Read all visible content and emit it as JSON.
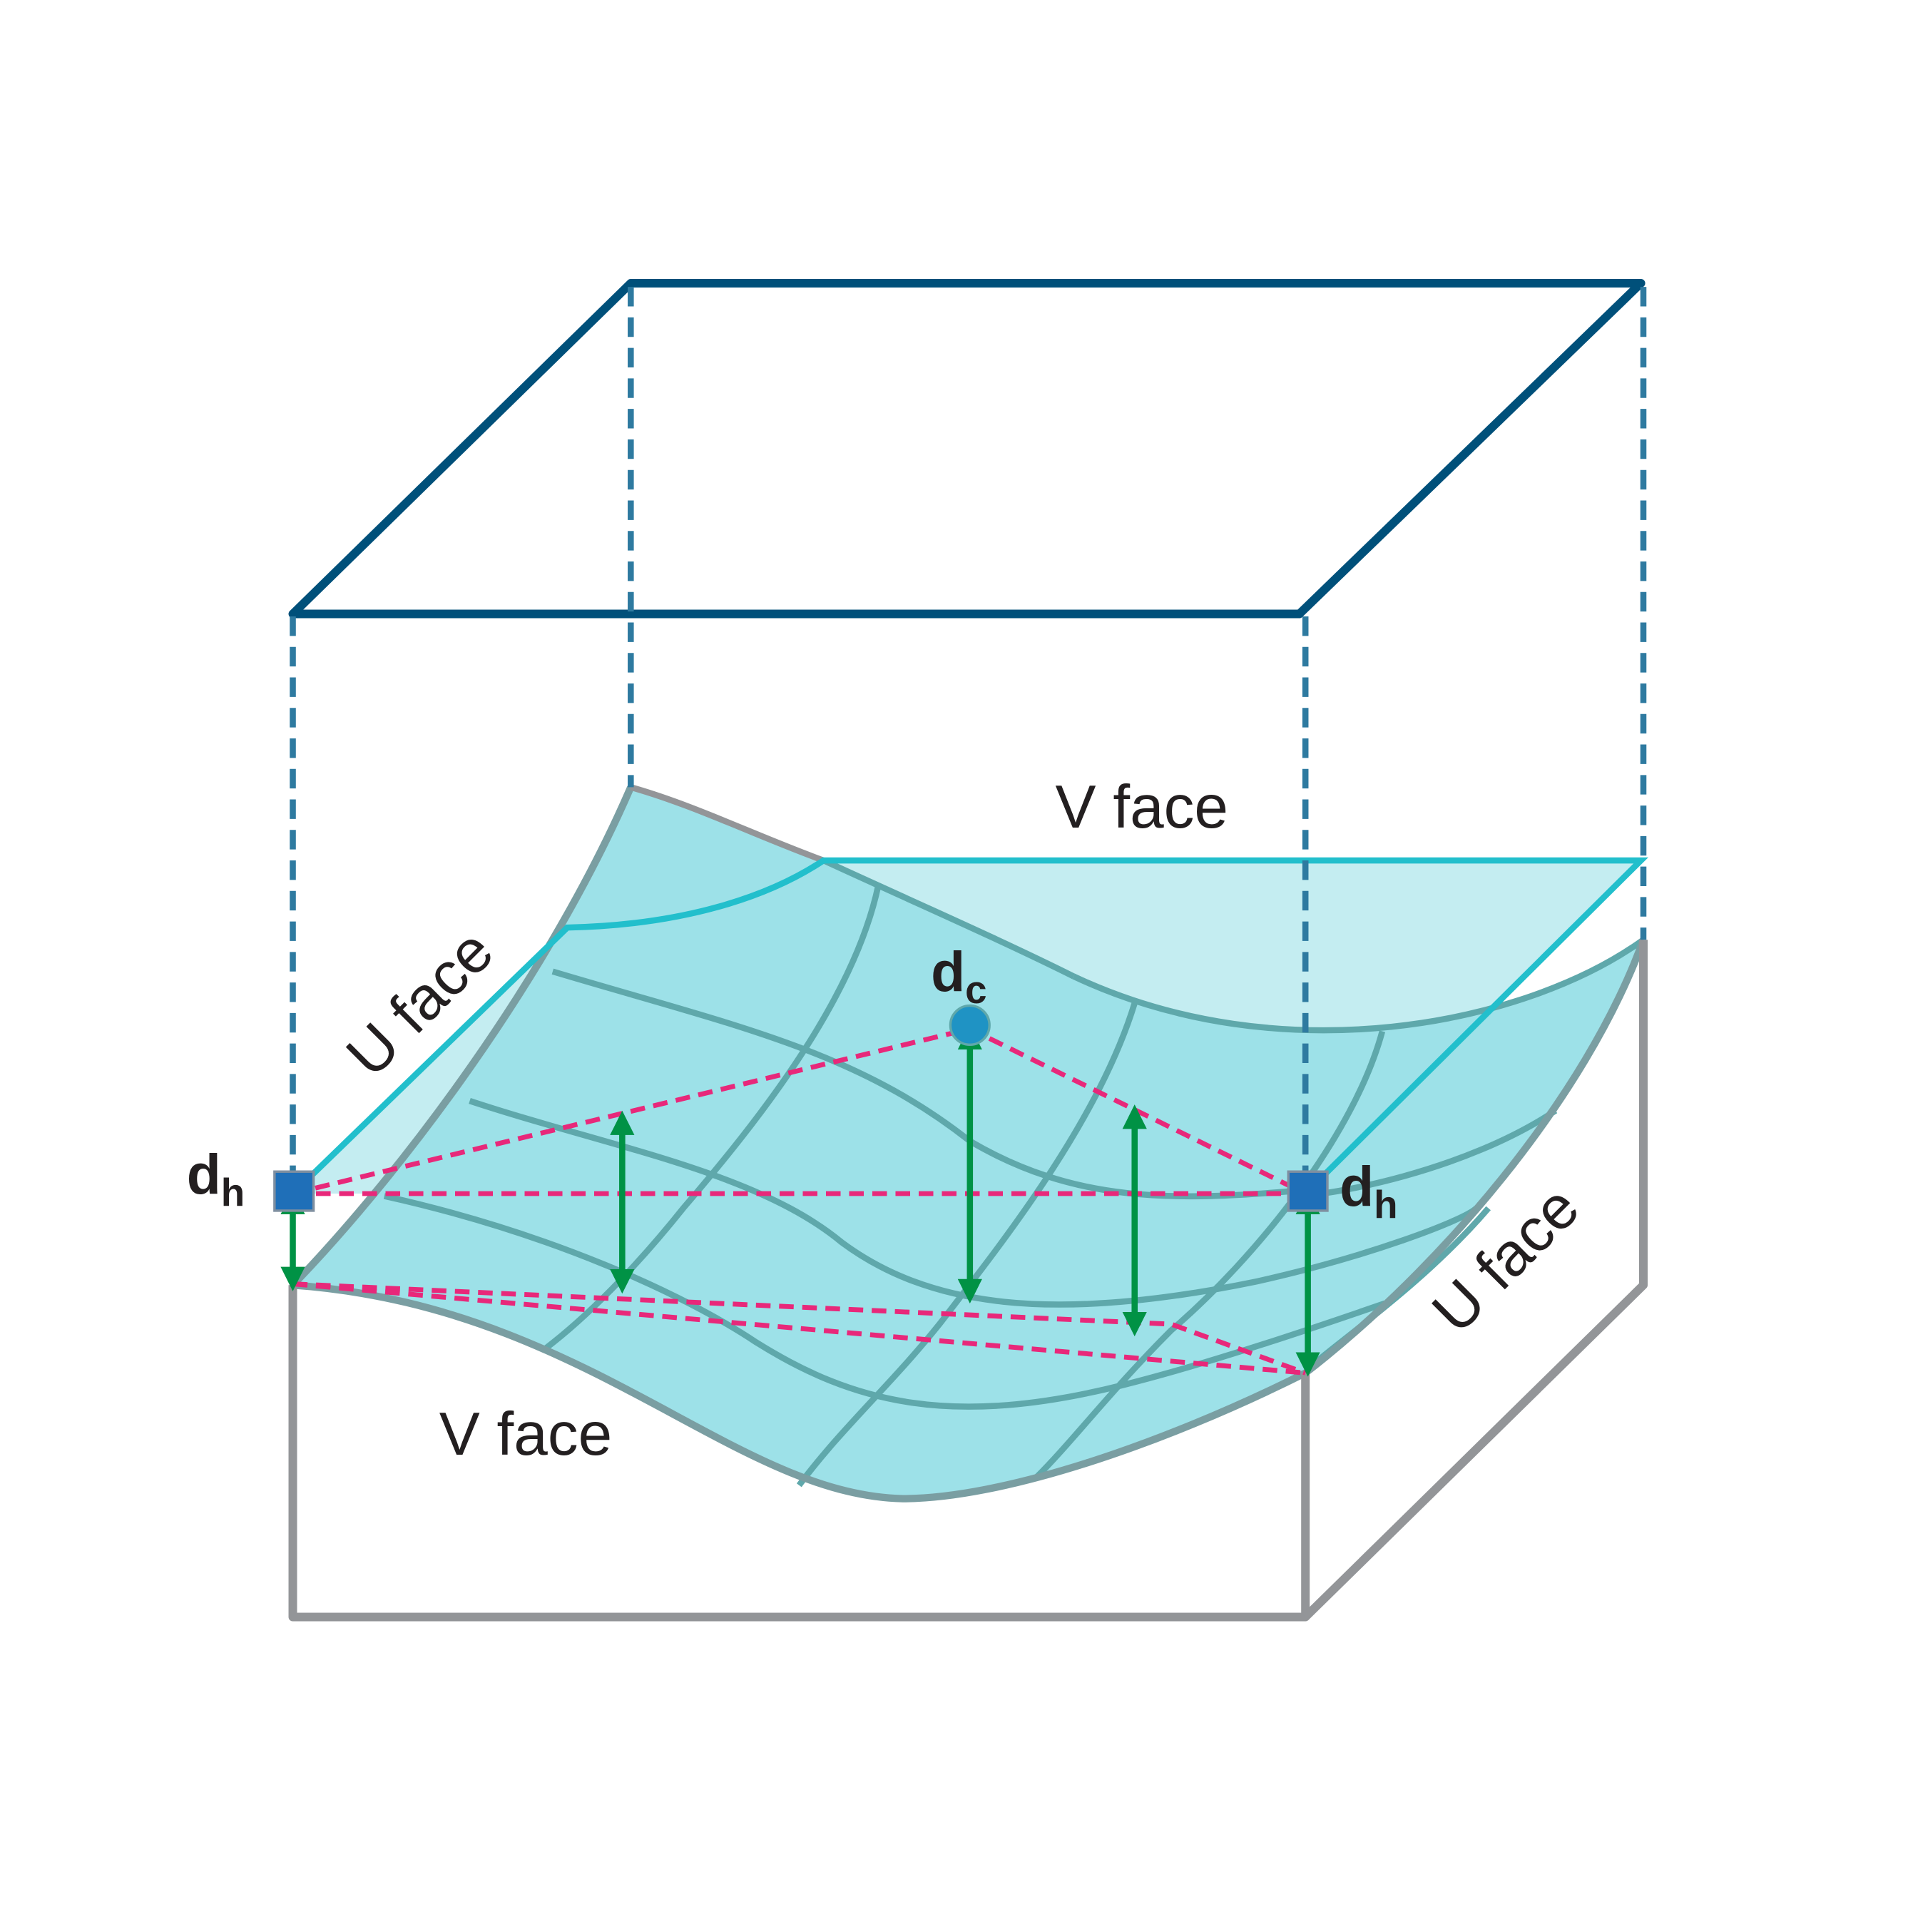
{
  "labels": {
    "v_face_back": "V face",
    "v_face_front": "V face",
    "u_face_left": "U face",
    "u_face_right": "U face",
    "dh_left": "d",
    "dh_left_sub": "h",
    "dh_right": "d",
    "dh_right_sub": "h",
    "dc": "d",
    "dc_sub": "c"
  },
  "colors": {
    "top_box": "#00507a",
    "projection_dashes": "#2e7aa0",
    "bottom_box": "#939598",
    "surface_fill": "#9de1e8",
    "plane_edge": "#22bfcc",
    "grid": "#5fa8ab",
    "pink_dashes": "#e8287a",
    "arrows": "#009245",
    "corner_marker": "#1f6fb8",
    "center_marker": "#1f93c4"
  }
}
